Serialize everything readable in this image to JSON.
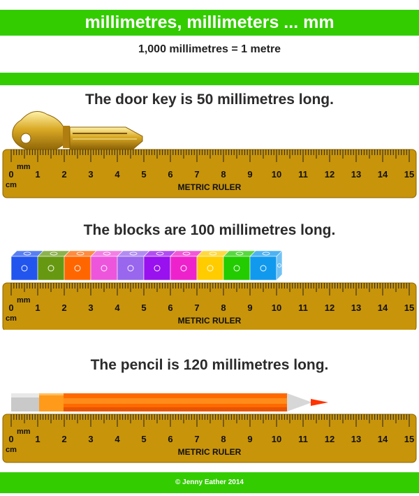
{
  "header": {
    "title": "millimetres, millimeters ... mm"
  },
  "subtitle": "1,000 millimetres = 1 metre",
  "ruler": {
    "mm_label": "mm",
    "cm_label": "cm",
    "name": "METRIC RULER",
    "numbers": [
      "0",
      "1",
      "2",
      "3",
      "4",
      "5",
      "6",
      "7",
      "8",
      "9",
      "10",
      "11",
      "12",
      "13",
      "14",
      "15"
    ],
    "color": "#c8940a"
  },
  "sections": [
    {
      "caption": "The door key is 50 millimetres long.",
      "object": "door-key",
      "length_mm": 50
    },
    {
      "caption": "The blocks are 100 millimetres long.",
      "object": "blocks",
      "length_mm": 100,
      "block_colors": [
        "#2255ee",
        "#669911",
        "#ff6600",
        "#ee55dd",
        "#9966ee",
        "#9911ee",
        "#ee22cc",
        "#ffcc00",
        "#22cc00",
        "#1199ee"
      ]
    },
    {
      "caption": "The pencil is 120 millimetres long.",
      "object": "pencil",
      "length_mm": 120
    }
  ],
  "footer": {
    "credit": "© Jenny Eather 2014"
  }
}
